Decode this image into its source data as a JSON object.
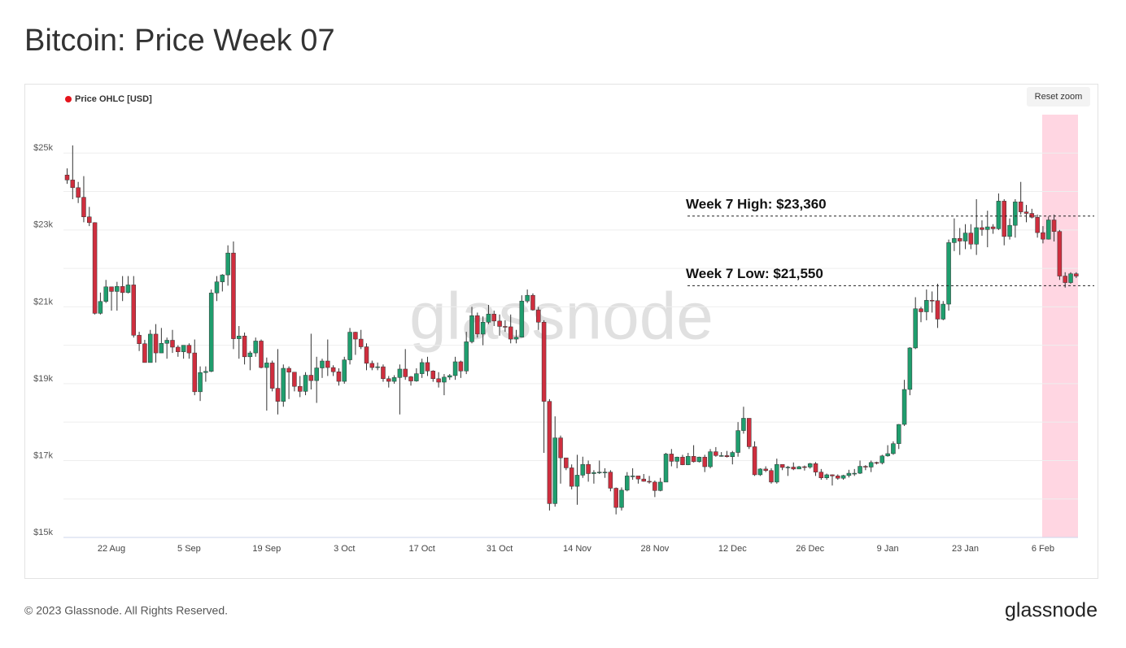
{
  "header": {
    "title": "Bitcoin: Price Week 07"
  },
  "footer": {
    "copyright": "© 2023 Glassnode. All Rights Reserved.",
    "logo": "glassnode"
  },
  "controls": {
    "reset_zoom": "Reset zoom"
  },
  "chart_data": {
    "type": "candlestick",
    "watermark": "glassnode",
    "categories": [
      null,
      null,
      null,
      null,
      null,
      null,
      null,
      null,
      "22 Aug",
      null,
      null,
      null,
      null,
      null,
      null,
      null,
      null,
      null,
      null,
      null,
      null,
      null,
      "5 Sep",
      null,
      null,
      null,
      null,
      null,
      null,
      null,
      null,
      null,
      null,
      null,
      null,
      null,
      "19 Sep",
      null,
      null,
      null,
      null,
      null,
      null,
      null,
      null,
      null,
      null,
      null,
      null,
      null,
      "3 Oct",
      null,
      null,
      null,
      null,
      null,
      null,
      null,
      null,
      null,
      null,
      null,
      null,
      null,
      "17 Oct",
      null,
      null,
      null,
      null,
      null,
      null,
      null,
      null,
      null,
      null,
      null,
      null,
      null,
      "31 Oct",
      null,
      null,
      null,
      null,
      null,
      null,
      null,
      null,
      null,
      null,
      null,
      null,
      null,
      "14 Nov",
      null,
      null,
      null,
      null,
      null,
      null,
      null,
      null,
      null,
      null,
      null,
      null,
      null,
      "28 Nov",
      null,
      null,
      null,
      null,
      null,
      null,
      null,
      null,
      null,
      null,
      null,
      null,
      null,
      "12 Dec",
      null,
      null,
      null,
      null,
      null,
      null,
      null,
      null,
      null,
      null,
      null,
      null,
      null,
      "26 Dec",
      null,
      null,
      null,
      null,
      null,
      null,
      null,
      null,
      null,
      null,
      null,
      null,
      null,
      "9 Jan",
      null,
      null,
      null,
      null,
      null,
      null,
      null,
      null,
      null,
      null,
      null,
      null,
      null,
      "23 Jan",
      null,
      null,
      null,
      null,
      null,
      null,
      null,
      null,
      null,
      null,
      null,
      null,
      null,
      "6 Feb",
      null,
      null,
      null,
      null,
      null,
      null
    ],
    "series": [
      {
        "name": "Price OHLC [USD]",
        "color": "#e5141c",
        "open": [
          24430,
          24300,
          24100,
          23850,
          23340,
          23190,
          20830,
          21140,
          21520,
          21400,
          21530,
          21370,
          21570,
          20260,
          20040,
          19550,
          20290,
          19800,
          20050,
          20130,
          19950,
          19830,
          20000,
          19800,
          18790,
          19290,
          19320,
          21360,
          21650,
          21830,
          22400,
          20170,
          20240,
          19700,
          19800,
          20110,
          19420,
          19540,
          18880,
          18540,
          19400,
          19300,
          18930,
          18800,
          19220,
          19080,
          19410,
          19590,
          19420,
          19310,
          19060,
          19620,
          20340,
          20160,
          19960,
          19530,
          19420,
          19440,
          19130,
          19060,
          19160,
          19380,
          19180,
          19070,
          19260,
          19550,
          19330,
          19130,
          19040,
          19170,
          19210,
          19570,
          19330,
          20090,
          20770,
          20290,
          20600,
          20810,
          20630,
          20490,
          20480,
          20160,
          20210,
          21150,
          21300,
          20920,
          20600,
          18540,
          15880,
          17590,
          17070,
          16810,
          16330,
          16620,
          16900,
          16660,
          16690,
          16700,
          16700,
          16280,
          15780,
          16230,
          16600,
          16600,
          16520,
          16460,
          16440,
          16220,
          16440,
          17170,
          16980,
          17090,
          16890,
          17110,
          16970,
          17090,
          16840,
          17230,
          17130,
          17130,
          17100,
          17210,
          17780,
          18100,
          17360,
          16630,
          16780,
          16740,
          16440,
          16900,
          16820,
          16830,
          16780,
          16840,
          16830,
          16920,
          16700,
          16550,
          16630,
          16600,
          16540,
          16610,
          16670,
          16670,
          16850,
          16830,
          16950,
          16940,
          17120,
          17180,
          17440,
          17940,
          18850,
          19930,
          20950,
          20870,
          21170,
          21160,
          20680,
          21070,
          22670,
          22780,
          22710,
          22920,
          22630,
          23060,
          23010,
          23080,
          23030,
          23750,
          22830,
          23120,
          23730,
          23470,
          23430,
          23330,
          22930,
          22760,
          23260,
          22960,
          21800,
          21630,
          21860
        ],
        "high": [
          24600,
          25200,
          24250,
          24400,
          23600,
          23200,
          21370,
          21700,
          21520,
          21650,
          21800,
          21800,
          21800,
          20350,
          20140,
          20400,
          20550,
          20450,
          20200,
          20400,
          20000,
          20000,
          20050,
          20150,
          19450,
          19450,
          21450,
          21800,
          21850,
          22600,
          22700,
          20500,
          20330,
          19850,
          20200,
          20150,
          19680,
          19600,
          19900,
          19500,
          19450,
          19300,
          19200,
          19300,
          20300,
          19700,
          19650,
          20150,
          19480,
          19400,
          19700,
          20450,
          20350,
          20400,
          20050,
          19600,
          19550,
          19500,
          19200,
          19220,
          19500,
          19900,
          19200,
          19400,
          19650,
          19700,
          19350,
          19300,
          19250,
          19250,
          19700,
          19600,
          20350,
          21000,
          20850,
          20750,
          21050,
          20900,
          20800,
          20650,
          20800,
          20400,
          21300,
          21450,
          21350,
          21000,
          20650,
          18600,
          18150,
          17650,
          17070,
          16900,
          17150,
          17100,
          17000,
          16750,
          17000,
          16800,
          16750,
          16300,
          16300,
          16700,
          16800,
          16600,
          16650,
          16600,
          16480,
          16550,
          17200,
          17300,
          17100,
          17150,
          17200,
          17400,
          17100,
          17150,
          17300,
          17350,
          17220,
          17250,
          17250,
          18000,
          18400,
          18100,
          17500,
          16800,
          16850,
          16800,
          17050,
          16900,
          16860,
          16950,
          16860,
          16870,
          16940,
          16960,
          16780,
          16660,
          16640,
          16640,
          16630,
          16760,
          16780,
          17000,
          16880,
          17000,
          16970,
          17150,
          17400,
          17500,
          17950,
          19100,
          19950,
          21250,
          21000,
          21450,
          21400,
          21600,
          21150,
          22750,
          23300,
          23050,
          23150,
          23150,
          23800,
          23250,
          23500,
          23150,
          23950,
          23800,
          23300,
          23800,
          24250,
          23650,
          23550,
          23400,
          23100,
          23350,
          23400,
          23000,
          21900,
          21900,
          21900
        ],
        "low": [
          24200,
          23800,
          23700,
          23200,
          23100,
          20800,
          20800,
          21100,
          20900,
          20900,
          21150,
          21350,
          20200,
          19850,
          19550,
          19550,
          19550,
          19800,
          19650,
          19800,
          19700,
          19650,
          19650,
          18700,
          18550,
          19050,
          19300,
          21150,
          21400,
          21550,
          19900,
          19650,
          19500,
          19350,
          19700,
          19400,
          18300,
          18800,
          18200,
          18400,
          18600,
          18800,
          18650,
          18700,
          18850,
          18500,
          19150,
          19200,
          19200,
          18950,
          19000,
          19500,
          19750,
          19900,
          19350,
          19350,
          19350,
          19050,
          18900,
          19000,
          18200,
          19100,
          18950,
          19050,
          19150,
          19200,
          19050,
          18900,
          18700,
          19100,
          19100,
          19150,
          19250,
          20050,
          20200,
          20000,
          20550,
          20500,
          20250,
          20350,
          20050,
          20050,
          20200,
          21100,
          20900,
          20400,
          17200,
          15700,
          15800,
          16400,
          16750,
          16250,
          15850,
          16550,
          16450,
          16400,
          16650,
          16550,
          16200,
          15600,
          15700,
          16200,
          16500,
          16400,
          16450,
          16400,
          16050,
          16200,
          16450,
          16850,
          16800,
          16880,
          16880,
          16950,
          16950,
          16700,
          16800,
          17100,
          17100,
          17080,
          16900,
          17100,
          17700,
          17300,
          16600,
          16600,
          16700,
          16400,
          16400,
          16750,
          16600,
          16750,
          16780,
          16740,
          16790,
          16600,
          16500,
          16500,
          16350,
          16500,
          16500,
          16560,
          16600,
          16650,
          16750,
          16700,
          16900,
          16900,
          17100,
          17150,
          17300,
          17900,
          18700,
          19900,
          20600,
          20650,
          20850,
          20450,
          20650,
          20900,
          22450,
          22350,
          22500,
          22500,
          22350,
          22850,
          22550,
          22900,
          23000,
          22600,
          22750,
          22800,
          23400,
          23200,
          23300,
          22800,
          22650,
          22750,
          22700,
          21700,
          21500,
          21600,
          21750
        ],
        "close": [
          24300,
          24100,
          23850,
          23340,
          23190,
          20830,
          21140,
          21520,
          21400,
          21530,
          21370,
          21570,
          20260,
          20040,
          19550,
          20290,
          19800,
          20050,
          20130,
          19950,
          19830,
          20000,
          19800,
          18790,
          19290,
          19320,
          21360,
          21650,
          21830,
          22400,
          20170,
          20240,
          19700,
          19800,
          20110,
          19420,
          19540,
          18880,
          18540,
          19400,
          19300,
          18930,
          18800,
          19220,
          19080,
          19410,
          19590,
          19420,
          19310,
          19060,
          19620,
          20340,
          20160,
          19960,
          19530,
          19420,
          19440,
          19130,
          19060,
          19160,
          19380,
          19180,
          19070,
          19260,
          19550,
          19330,
          19130,
          19040,
          19170,
          19210,
          19570,
          19330,
          20090,
          20770,
          20290,
          20600,
          20810,
          20630,
          20490,
          20480,
          20160,
          20210,
          21150,
          21300,
          20920,
          20600,
          18540,
          15880,
          17590,
          17070,
          16810,
          16330,
          16620,
          16900,
          16660,
          16690,
          16700,
          16700,
          16280,
          15780,
          16230,
          16600,
          16600,
          16520,
          16460,
          16440,
          16220,
          16440,
          17170,
          16980,
          17090,
          16890,
          17110,
          16970,
          17090,
          16840,
          17230,
          17130,
          17130,
          17100,
          17210,
          17780,
          18100,
          17360,
          16630,
          16780,
          16740,
          16440,
          16900,
          16820,
          16830,
          16780,
          16840,
          16830,
          16920,
          16700,
          16550,
          16630,
          16600,
          16540,
          16610,
          16670,
          16670,
          16850,
          16830,
          16950,
          16940,
          17120,
          17180,
          17440,
          17940,
          18850,
          19930,
          20950,
          20870,
          21170,
          21160,
          20680,
          21070,
          22670,
          22780,
          22710,
          22920,
          22630,
          23060,
          23010,
          23080,
          23030,
          23750,
          22830,
          23120,
          23730,
          23470,
          23430,
          23330,
          22930,
          22760,
          23260,
          22960,
          21800,
          21630,
          21860,
          21800
        ]
      }
    ],
    "up_color": "#1f9e6e",
    "down_color": "#cf2e3e",
    "ylim": [
      15000,
      26000
    ],
    "yticks": [
      {
        "value": 15000,
        "label": "$15k"
      },
      {
        "value": 17000,
        "label": "$17k"
      },
      {
        "value": 19000,
        "label": "$19k"
      },
      {
        "value": 21000,
        "label": "$21k"
      },
      {
        "value": 23000,
        "label": "$23k"
      },
      {
        "value": 25000,
        "label": "$25k"
      }
    ],
    "minor_yticks": [
      16000,
      18000,
      20000,
      22000,
      24000
    ],
    "grid": true,
    "annotations": [
      {
        "text": "Week 7 High: $23,360",
        "value": 23360
      },
      {
        "text": "Week 7 Low: $21,550",
        "value": 21550
      }
    ]
  }
}
